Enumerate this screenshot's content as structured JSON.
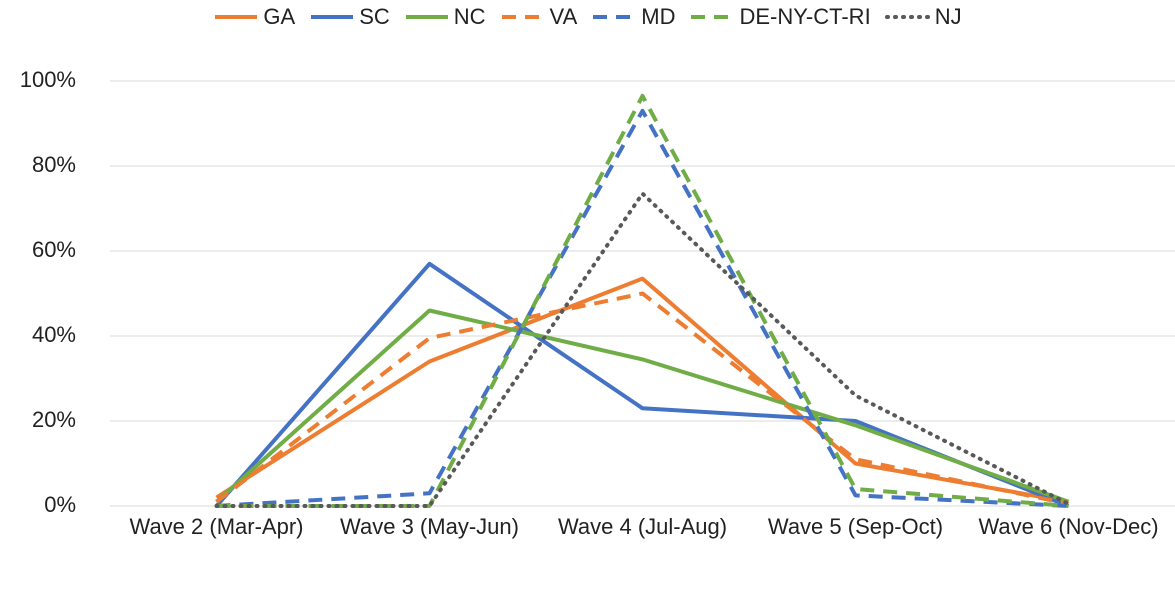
{
  "chart_data": {
    "type": "line",
    "categories": [
      "Wave 2 (Mar-Apr)",
      "Wave 3 (May-Jun)",
      "Wave 4 (Jul-Aug)",
      "Wave 5 (Sep-Oct)",
      "Wave 6 (Nov-Dec)"
    ],
    "series": [
      {
        "name": "GA",
        "color": "#ed7d31",
        "line_style": "solid",
        "values": [
          2,
          34,
          53.5,
          10,
          1
        ]
      },
      {
        "name": "SC",
        "color": "#4472c4",
        "line_style": "solid",
        "values": [
          0,
          57,
          23,
          20,
          0
        ]
      },
      {
        "name": "NC",
        "color": "#70ad47",
        "line_style": "solid",
        "values": [
          1,
          46,
          34.5,
          19,
          1
        ]
      },
      {
        "name": "VA",
        "color": "#ed7d31",
        "line_style": "dashed",
        "values": [
          1,
          39.5,
          50,
          11,
          0.5
        ]
      },
      {
        "name": "MD",
        "color": "#4472c4",
        "line_style": "dashed",
        "values": [
          0,
          3,
          93,
          2.5,
          0
        ]
      },
      {
        "name": "DE-NY-CT-RI",
        "color": "#70ad47",
        "line_style": "dashed",
        "values": [
          0,
          0,
          96.5,
          4,
          0
        ]
      },
      {
        "name": "NJ",
        "color": "#595959",
        "line_style": "dotted",
        "values": [
          0,
          0,
          73.5,
          26,
          0.5
        ]
      }
    ],
    "ylim": [
      0,
      100
    ],
    "yticks": [
      {
        "value": 0,
        "label": "0%"
      },
      {
        "value": 20,
        "label": "20%"
      },
      {
        "value": 40,
        "label": "40%"
      },
      {
        "value": 60,
        "label": "60%"
      },
      {
        "value": 80,
        "label": "80%"
      },
      {
        "value": 100,
        "label": "100%"
      }
    ],
    "grid": true,
    "legend": "top"
  }
}
